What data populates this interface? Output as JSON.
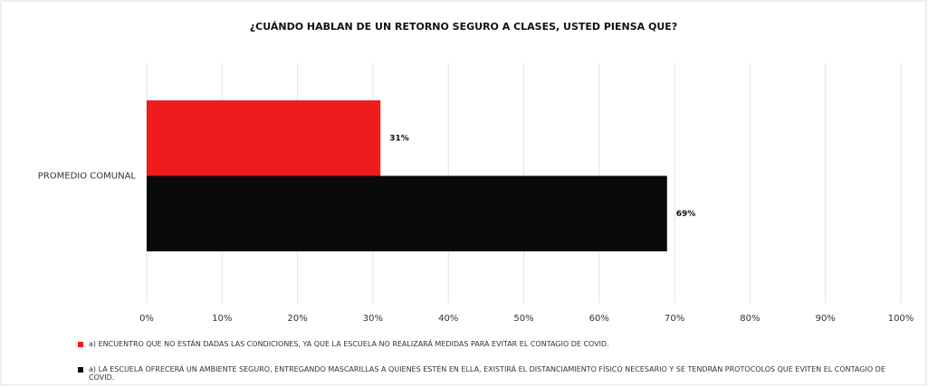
{
  "chart_data": {
    "type": "bar",
    "orientation": "horizontal",
    "title": "¿CUÁNDO HABLAN DE UN RETORNO SEGURO A CLASES, USTED PIENSA QUE?",
    "categories": [
      "PROMEDIO COMUNAL"
    ],
    "series": [
      {
        "name": "a) ENCUENTRO QUE NO ESTÁN DADAS LAS CONDICIONES, YA QUE LA ESCUELA NO REALIZARÁ MEDIDAS PARA EVITAR EL CONTAGIO DE COVID.",
        "color": "#ee1c1c",
        "values": [
          31
        ],
        "value_labels": [
          "31%"
        ]
      },
      {
        "name": "a) LA ESCUELA OFRECERÁ UN AMBIENTE SEGURO, ENTREGANDO MASCARILLAS A QUIENES ESTÉN EN ELLA, EXISTIRÁ EL DISTANCIAMIENTO FÍSICO NECESARIO Y SE TENDRÁN PROTOCOLOS QUE EVITEN EL CONTAGIO DE COVID.",
        "color": "#0a0a0a",
        "values": [
          69
        ],
        "value_labels": [
          "69%"
        ]
      }
    ],
    "xlim": [
      0,
      100
    ],
    "xticks": [
      {
        "value": 0,
        "label": "0%"
      },
      {
        "value": 10,
        "label": "10%"
      },
      {
        "value": 20,
        "label": "20%"
      },
      {
        "value": 30,
        "label": "30%"
      },
      {
        "value": 40,
        "label": "40%"
      },
      {
        "value": 50,
        "label": "50%"
      },
      {
        "value": 60,
        "label": "60%"
      },
      {
        "value": 70,
        "label": "70%"
      },
      {
        "value": 80,
        "label": "80%"
      },
      {
        "value": 90,
        "label": "90%"
      },
      {
        "value": 100,
        "label": "100%"
      }
    ],
    "grid": true,
    "legend": "bottom"
  }
}
